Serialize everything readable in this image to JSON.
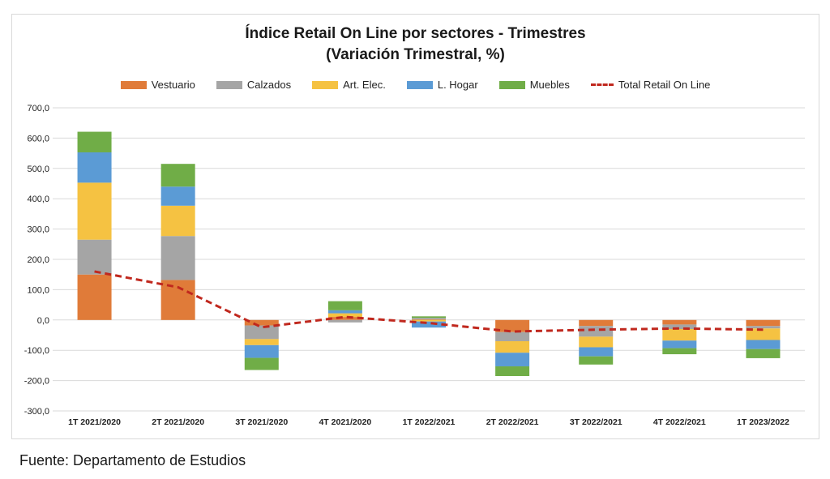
{
  "title": "Índice Retail On Line por sectores - Trimestres",
  "subtitle": "(Variación Trimestral, %)",
  "source": "Fuente: Departamento de Estudios",
  "colors": {
    "Vestuario": "#e07b39",
    "Calzados": "#a5a5a5",
    "Art. Elec.": "#f5c242",
    "L. Hogar": "#5b9bd5",
    "Muebles": "#70ad47",
    "Total Retail On Line": "#c0281e"
  },
  "chart_data": {
    "type": "bar",
    "stacked": true,
    "categories": [
      "1T 2021/2020",
      "2T 2021/2020",
      "3T 2021/2020",
      "4T 2021/2020",
      "1T 2022/2021",
      "2T 2022/2021",
      "3T 2022/2021",
      "4T 2022/2021",
      "1T 2023/2022"
    ],
    "series": [
      {
        "name": "Vestuario",
        "values": [
          150,
          132,
          -18,
          10,
          2,
          -40,
          -20,
          -15,
          -20
        ]
      },
      {
        "name": "Calzados",
        "values": [
          115,
          145,
          -45,
          -8,
          5,
          -30,
          -35,
          -15,
          -8
        ]
      },
      {
        "name": "Art. Elec.",
        "values": [
          188,
          100,
          -20,
          12,
          -5,
          -38,
          -35,
          -38,
          -38
        ]
      },
      {
        "name": "L. Hogar",
        "values": [
          100,
          63,
          -42,
          10,
          -20,
          -45,
          -30,
          -25,
          -30
        ]
      },
      {
        "name": "Muebles",
        "values": [
          68,
          75,
          -40,
          30,
          5,
          -32,
          -27,
          -20,
          -30
        ]
      }
    ],
    "line_series": {
      "name": "Total Retail On Line",
      "values": [
        160,
        108,
        -24,
        10,
        -10,
        -38,
        -32,
        -28,
        -32
      ]
    },
    "xlabel": "",
    "ylabel": "",
    "ylim": [
      -300,
      700
    ],
    "yticks": [
      700,
      600,
      500,
      400,
      300,
      200,
      100,
      0,
      -100,
      -200,
      -300
    ],
    "ytick_labels": [
      "700,0",
      "600,0",
      "500,0",
      "400,0",
      "300,0",
      "200,0",
      "100,0",
      "0,0",
      "-100,0",
      "-200,0",
      "-300,0"
    ],
    "grid": true,
    "legend_position": "top"
  }
}
